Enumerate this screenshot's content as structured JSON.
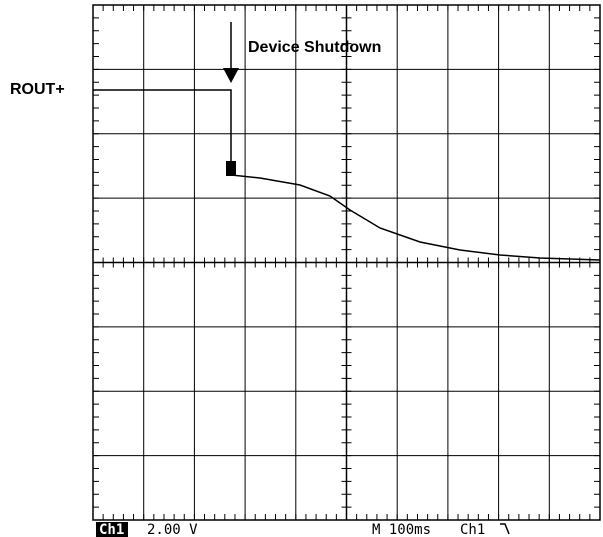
{
  "annotations": {
    "signal": "ROUT+",
    "event": "Device Shutdown"
  },
  "status": {
    "channel": "Ch1",
    "scale": "2.00 V",
    "timebase": "M 100ms",
    "trigger": "Ch1"
  }
}
